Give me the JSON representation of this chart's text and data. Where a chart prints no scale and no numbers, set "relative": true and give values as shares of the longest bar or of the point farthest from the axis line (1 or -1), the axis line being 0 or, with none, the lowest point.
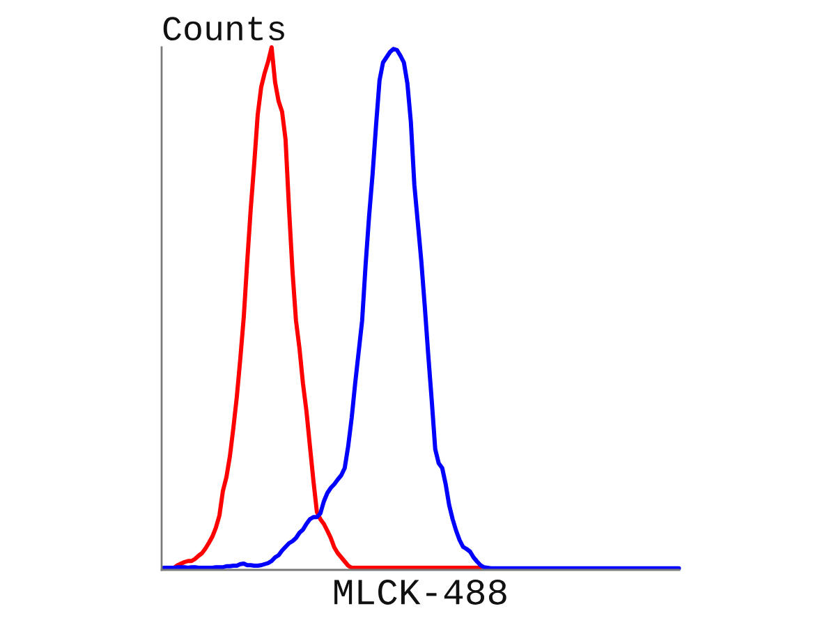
{
  "chart_data": {
    "type": "line",
    "relative": true,
    "ylabel": "Counts",
    "xlabel": "MLCK-488",
    "categories": [
      null,
      null,
      null,
      null,
      null,
      null,
      null,
      null,
      null,
      null,
      null,
      null,
      null,
      null,
      null,
      null,
      null,
      null,
      null,
      null,
      null,
      null,
      null,
      null,
      null,
      null,
      null,
      null,
      null,
      null,
      null,
      null,
      null,
      null,
      null,
      null,
      null,
      null,
      null,
      null,
      null,
      null,
      null,
      null,
      null,
      null,
      null,
      null,
      null,
      null,
      null,
      null,
      null,
      null,
      null,
      null,
      null,
      null,
      null,
      null,
      null,
      null,
      null,
      null,
      null,
      null,
      null,
      null,
      null,
      null,
      null,
      null,
      null,
      null,
      null,
      null,
      null,
      null,
      null,
      null,
      null,
      null,
      null,
      null,
      null,
      null,
      null,
      null,
      null,
      null,
      null,
      null,
      null,
      null,
      null,
      null,
      null,
      null,
      null,
      null,
      null,
      null,
      null,
      null,
      null,
      null,
      null,
      null,
      null,
      null,
      null,
      null,
      null,
      null,
      null,
      null,
      null,
      null,
      null,
      null,
      null,
      null,
      null,
      null,
      null,
      null,
      null,
      null,
      null,
      null,
      null,
      null,
      null,
      null,
      null,
      null,
      null,
      null,
      null,
      null,
      null,
      null,
      null,
      null,
      null,
      null,
      null,
      null,
      null
    ],
    "series": [
      {
        "color": "#ff0000",
        "values": [
          null,
          null,
          null,
          0.004,
          0.009,
          0.012,
          0.015,
          0.017,
          0.017,
          0.021,
          0.027,
          0.032,
          0.041,
          0.052,
          0.064,
          0.081,
          0.104,
          0.151,
          0.177,
          0.217,
          0.271,
          0.331,
          0.404,
          0.484,
          0.591,
          0.691,
          0.777,
          0.871,
          0.924,
          0.951,
          0.973,
          1.0,
          0.933,
          0.897,
          0.877,
          0.824,
          0.691,
          0.571,
          0.477,
          0.424,
          0.357,
          0.304,
          0.237,
          0.171,
          0.111,
          0.097,
          0.088,
          0.075,
          0.061,
          0.043,
          0.032,
          0.024,
          0.016,
          0.008,
          0.004,
          0.004,
          0.004,
          0.004,
          0.004,
          0.004,
          0.004,
          0.004,
          0.004,
          0.004,
          0.004,
          0.004,
          0.004,
          0.004,
          0.004,
          0.004,
          0.004,
          0.004,
          0.004,
          0.004,
          0.004,
          0.004,
          0.004,
          0.004,
          0.004,
          0.004,
          0.004,
          0.004,
          0.004,
          0.004,
          0.004,
          0.004,
          0.004,
          0.004,
          0.004,
          0.004,
          0.004,
          0.004,
          null,
          null,
          null,
          null,
          null,
          null,
          null,
          null,
          null,
          null,
          null,
          null,
          null,
          null,
          null,
          null,
          null,
          null,
          null,
          null,
          null,
          null,
          null,
          null,
          null,
          null,
          null,
          null,
          null,
          null,
          null,
          null,
          null,
          null,
          null,
          null,
          null,
          null,
          null,
          null,
          null,
          null,
          null,
          null,
          null,
          null,
          null,
          null,
          null,
          null,
          null,
          null,
          null,
          null,
          null,
          null,
          null
        ]
      },
      {
        "color": "#0000ff",
        "values": [
          0.004,
          0.004,
          0.004,
          0.004,
          0.005,
          0.005,
          0.005,
          0.004,
          0.005,
          0.005,
          0.004,
          0.004,
          0.004,
          0.004,
          0.004,
          0.005,
          0.005,
          0.005,
          0.007,
          0.007,
          0.008,
          0.008,
          0.011,
          0.012,
          0.009,
          0.009,
          0.008,
          0.008,
          0.009,
          0.011,
          0.013,
          0.017,
          0.024,
          0.028,
          0.037,
          0.044,
          0.051,
          0.055,
          0.061,
          0.071,
          0.077,
          0.088,
          0.097,
          0.101,
          0.101,
          0.108,
          0.131,
          0.147,
          0.157,
          0.164,
          0.173,
          0.181,
          0.195,
          0.237,
          0.291,
          0.357,
          0.417,
          0.477,
          0.584,
          0.677,
          0.757,
          0.851,
          0.937,
          0.971,
          0.981,
          0.991,
          0.997,
          0.995,
          0.984,
          0.971,
          0.931,
          0.857,
          0.737,
          0.664,
          0.591,
          0.504,
          0.411,
          0.324,
          0.231,
          0.204,
          0.195,
          0.164,
          0.124,
          0.097,
          0.075,
          0.057,
          0.044,
          0.04,
          0.035,
          0.024,
          0.016,
          0.009,
          0.005,
          0.004,
          0.003,
          0.003,
          0.003,
          0.003,
          0.003,
          0.003,
          0.003,
          0.003,
          0.003,
          0.003,
          0.003,
          0.003,
          0.003,
          0.003,
          0.003,
          0.003,
          0.003,
          0.003,
          0.003,
          0.003,
          0.003,
          0.003,
          0.003,
          0.003,
          0.003,
          0.003,
          0.003,
          0.003,
          0.003,
          0.003,
          0.003,
          0.003,
          0.003,
          0.003,
          0.003,
          0.003,
          0.003,
          0.003,
          0.003,
          0.003,
          0.003,
          0.003,
          0.003,
          0.003,
          0.003,
          0.003,
          0.003,
          0.003,
          0.003,
          0.003,
          0.003,
          0.003,
          0.003,
          0.003,
          0.003
        ]
      }
    ]
  }
}
